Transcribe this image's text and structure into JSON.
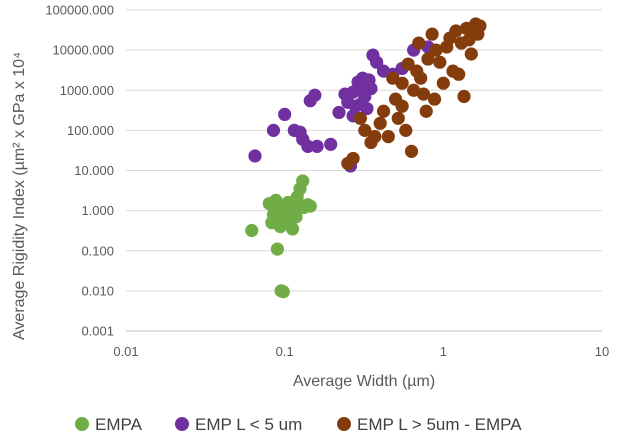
{
  "chart_data": {
    "type": "scatter",
    "title": "",
    "xlabel": "Average Width (µm)",
    "ylabel": "Average Rigidity Index (µm² x GPa x 10⁴",
    "xscale": "log",
    "yscale": "log",
    "xlim": [
      0.01,
      10
    ],
    "ylim": [
      0.001,
      100000
    ],
    "x_tick_labels": [
      "0.01",
      "0.1",
      "1",
      "10"
    ],
    "y_tick_labels": [
      "0.001",
      "0.010",
      "0.100",
      "1.000",
      "10.000",
      "100.000",
      "1000.000",
      "10000.000",
      "100000.000"
    ],
    "grid": "horizontal",
    "legend_position": "bottom",
    "series": [
      {
        "name": "EMPA",
        "color": "#70AD47",
        "points": [
          [
            0.062,
            0.32
          ],
          [
            0.08,
            1.5
          ],
          [
            0.083,
            0.5
          ],
          [
            0.085,
            0.8
          ],
          [
            0.088,
            1.8
          ],
          [
            0.09,
            0.6
          ],
          [
            0.09,
            0.11
          ],
          [
            0.092,
            1.2
          ],
          [
            0.094,
            0.4
          ],
          [
            0.095,
            0.01
          ],
          [
            0.098,
            0.0095
          ],
          [
            0.097,
            0.6
          ],
          [
            0.1,
            0.9
          ],
          [
            0.102,
            1.3
          ],
          [
            0.105,
            1.6
          ],
          [
            0.106,
            0.7
          ],
          [
            0.108,
            0.5
          ],
          [
            0.11,
            1.0
          ],
          [
            0.112,
            0.35
          ],
          [
            0.115,
            0.9
          ],
          [
            0.118,
            0.7
          ],
          [
            0.12,
            2.2
          ],
          [
            0.122,
            1.5
          ],
          [
            0.125,
            3.5
          ],
          [
            0.13,
            5.5
          ],
          [
            0.132,
            1.2
          ],
          [
            0.14,
            1.4
          ],
          [
            0.145,
            1.3
          ],
          [
            0.087,
            0.7
          ]
        ]
      },
      {
        "name": "EMP L < 5 um",
        "color": "#7030A0",
        "points": [
          [
            0.065,
            23
          ],
          [
            0.085,
            100
          ],
          [
            0.1,
            250
          ],
          [
            0.115,
            100
          ],
          [
            0.125,
            90
          ],
          [
            0.13,
            60
          ],
          [
            0.14,
            40
          ],
          [
            0.145,
            550
          ],
          [
            0.155,
            750
          ],
          [
            0.16,
            40
          ],
          [
            0.195,
            45
          ],
          [
            0.22,
            280
          ],
          [
            0.24,
            800
          ],
          [
            0.25,
            500
          ],
          [
            0.26,
            13
          ],
          [
            0.27,
            900
          ],
          [
            0.28,
            400
          ],
          [
            0.29,
            1600
          ],
          [
            0.3,
            1200
          ],
          [
            0.31,
            2000
          ],
          [
            0.32,
            700
          ],
          [
            0.33,
            350
          ],
          [
            0.34,
            1800
          ],
          [
            0.35,
            1100
          ],
          [
            0.36,
            7500
          ],
          [
            0.38,
            5000
          ],
          [
            0.42,
            3000
          ],
          [
            0.48,
            2500
          ],
          [
            0.55,
            3500
          ],
          [
            0.65,
            10000
          ],
          [
            0.8,
            12000
          ],
          [
            0.3,
            450
          ],
          [
            0.27,
            230
          ]
        ]
      },
      {
        "name": "EMP L > 5um - EMPA",
        "color": "#843C0C",
        "points": [
          [
            0.25,
            15
          ],
          [
            0.27,
            20
          ],
          [
            0.3,
            200
          ],
          [
            0.32,
            100
          ],
          [
            0.35,
            50
          ],
          [
            0.37,
            70
          ],
          [
            0.4,
            150
          ],
          [
            0.42,
            300
          ],
          [
            0.45,
            70
          ],
          [
            0.48,
            2000
          ],
          [
            0.5,
            600
          ],
          [
            0.52,
            200
          ],
          [
            0.55,
            1500
          ],
          [
            0.58,
            100
          ],
          [
            0.6,
            4500
          ],
          [
            0.63,
            30
          ],
          [
            0.65,
            1000
          ],
          [
            0.68,
            3000
          ],
          [
            0.7,
            15000
          ],
          [
            0.72,
            2000
          ],
          [
            0.75,
            800
          ],
          [
            0.78,
            300
          ],
          [
            0.8,
            6000
          ],
          [
            0.85,
            25000
          ],
          [
            0.9,
            10000
          ],
          [
            0.95,
            5000
          ],
          [
            1.0,
            1500
          ],
          [
            1.05,
            12000
          ],
          [
            1.1,
            20000
          ],
          [
            1.15,
            3000
          ],
          [
            1.2,
            30000
          ],
          [
            1.25,
            2500
          ],
          [
            1.3,
            15000
          ],
          [
            1.35,
            700
          ],
          [
            1.4,
            35000
          ],
          [
            1.45,
            18000
          ],
          [
            1.5,
            8000
          ],
          [
            1.55,
            30000
          ],
          [
            1.6,
            45000
          ],
          [
            1.65,
            25000
          ],
          [
            1.7,
            40000
          ],
          [
            0.88,
            600
          ],
          [
            0.55,
            400
          ]
        ]
      }
    ]
  }
}
